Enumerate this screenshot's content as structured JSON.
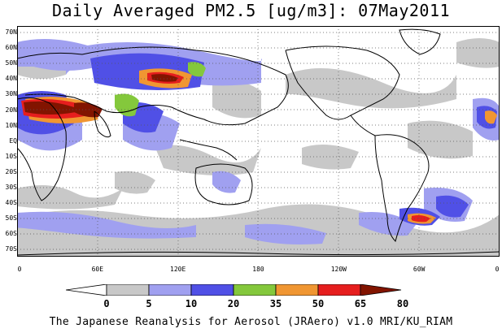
{
  "title": "Daily Averaged PM2.5 [ug/m3]: 07May2011",
  "footer": "The Japanese Reanalysis for Aerosol (JRAero) v1.0 MRI/KU_RIAM",
  "map": {
    "lat_labels": [
      "70N",
      "60N",
      "50N",
      "40N",
      "30N",
      "20N",
      "10N",
      "EQ",
      "10S",
      "20S",
      "30S",
      "40S",
      "50S",
      "60S",
      "70S"
    ],
    "lon_labels": [
      "0",
      "60E",
      "120E",
      "180",
      "120W",
      "60W",
      "0"
    ],
    "grid": "dotted",
    "region": "global"
  },
  "colorbar": {
    "levels": [
      "0",
      "5",
      "10",
      "20",
      "35",
      "50",
      "65",
      "80"
    ],
    "colors": [
      "#ffffff",
      "#c8c8c8",
      "#a0a0f0",
      "#5050e6",
      "#84c83c",
      "#f09632",
      "#e61e1e",
      "#821400"
    ]
  }
}
